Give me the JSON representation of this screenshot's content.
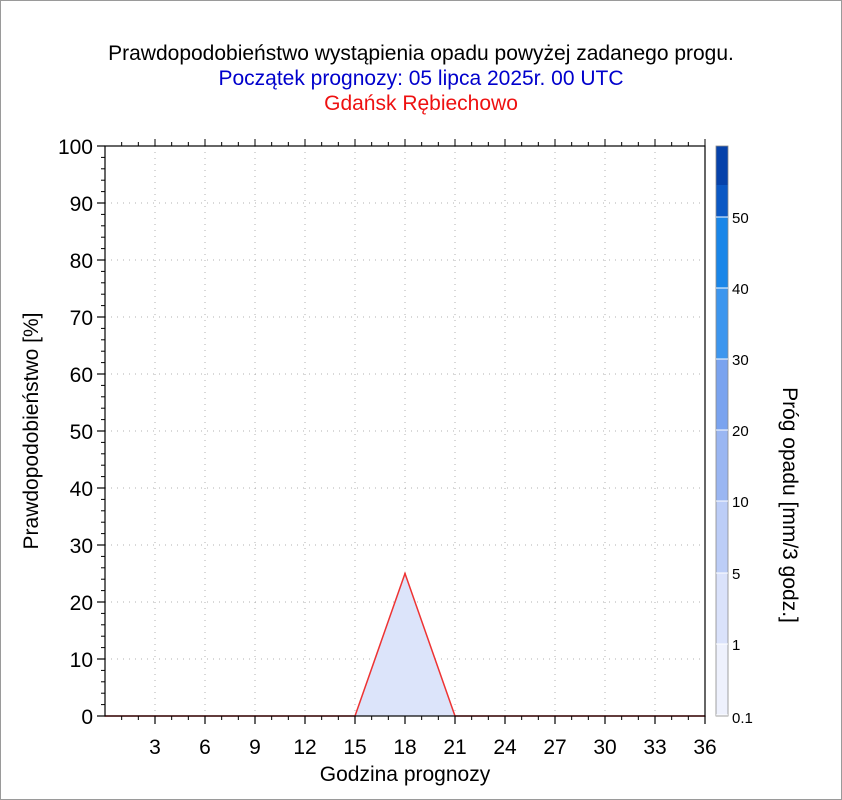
{
  "header": {
    "title": "Prawdopodobieństwo wystąpienia opadu powyżej zadanego progu.",
    "subtitle": "Początek prognozy: 05 lipca 2025r. 00 UTC",
    "station": "Gdańsk Rębiechowo"
  },
  "chart_data": {
    "type": "area",
    "xlabel": "Godzina prognozy",
    "ylabel": "Prawdopodobieństwo [%]",
    "xlim": [
      0,
      36
    ],
    "ylim": [
      0,
      100
    ],
    "xticks": [
      "3",
      "6",
      "9",
      "12",
      "15",
      "18",
      "21",
      "24",
      "27",
      "30",
      "33",
      "36"
    ],
    "yticks": [
      "0",
      "10",
      "20",
      "30",
      "40",
      "50",
      "60",
      "70",
      "80",
      "90",
      "100"
    ],
    "grid": true,
    "series": [
      {
        "x": [
          0,
          3,
          6,
          9,
          12,
          15,
          18,
          21,
          24,
          27,
          30,
          33,
          36
        ],
        "values": [
          0,
          0,
          0,
          0,
          0,
          0,
          25,
          0,
          0,
          0,
          0,
          0,
          0
        ],
        "line_color": "#ee3333",
        "fill_color": "#dce4fa"
      }
    ],
    "colorbar": {
      "label": "Próg opadu [mm/3 godz.]",
      "tick_labels": [
        "0.1",
        "1",
        "5",
        "10",
        "20",
        "30",
        "40",
        "50"
      ],
      "colors": [
        "#eef1fd",
        "#dae2fb",
        "#bccdf7",
        "#9ab6f2",
        "#7aa3ef",
        "#3d96ee",
        "#1a86e8",
        "#116fd9",
        "#0b58c4",
        "#0642aa"
      ]
    }
  }
}
